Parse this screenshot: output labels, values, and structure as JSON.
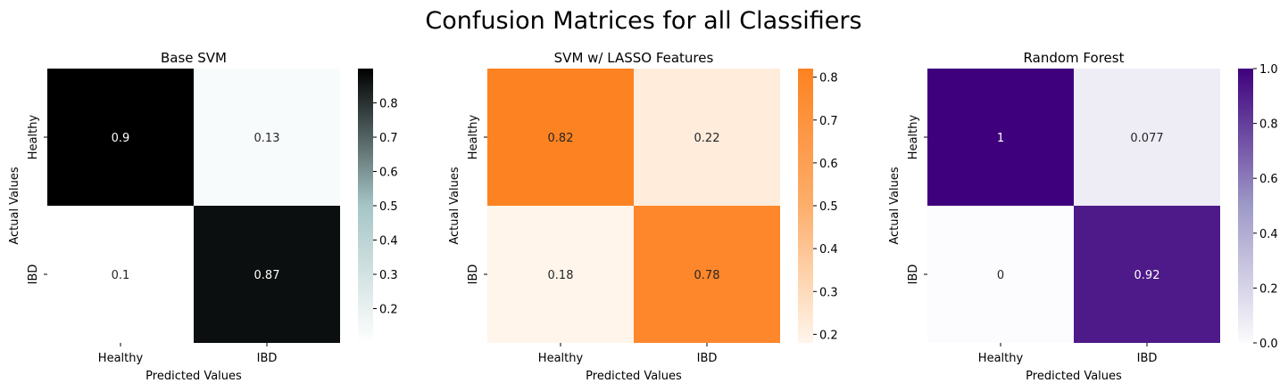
{
  "figure": {
    "title": "Confusion Matrices for all Classifiers"
  },
  "chart_data": [
    {
      "type": "heatmap",
      "title": "Base SVM",
      "xlabel": "Predicted Values",
      "ylabel": "Actual Values",
      "x_categories": [
        "Healthy",
        "IBD"
      ],
      "y_categories": [
        "Healthy",
        "IBD"
      ],
      "values": [
        [
          0.9,
          0.13
        ],
        [
          0.1,
          0.87
        ]
      ],
      "cell_labels": [
        [
          "0.9",
          "0.13"
        ],
        [
          "0.1",
          "0.87"
        ]
      ],
      "colormap": "bone_r",
      "colorbar": {
        "range": [
          0.1,
          0.9
        ],
        "ticks": [
          "0.2",
          "0.3",
          "0.4",
          "0.5",
          "0.6",
          "0.7",
          "0.8"
        ]
      },
      "colors": {
        "low": "#ffffff",
        "mid": "#a6c5c5",
        "high": "#000000"
      }
    },
    {
      "type": "heatmap",
      "title": "SVM w/ LASSO Features",
      "xlabel": "Predicted Values",
      "ylabel": "Actual Values",
      "x_categories": [
        "Healthy",
        "IBD"
      ],
      "y_categories": [
        "Healthy",
        "IBD"
      ],
      "values": [
        [
          0.82,
          0.22
        ],
        [
          0.18,
          0.78
        ]
      ],
      "cell_labels": [
        [
          "0.82",
          "0.22"
        ],
        [
          "0.18",
          "0.78"
        ]
      ],
      "colormap": "Oranges",
      "colorbar": {
        "range": [
          0.18,
          0.82
        ],
        "ticks": [
          "0.2",
          "0.3",
          "0.4",
          "0.5",
          "0.6",
          "0.7",
          "0.8"
        ]
      },
      "colors": {
        "low": "#fff5eb",
        "mid": "#fdae6b",
        "high": "#fd8221"
      }
    },
    {
      "type": "heatmap",
      "title": "Random Forest",
      "xlabel": "Predicted Values",
      "ylabel": "Actual Values",
      "x_categories": [
        "Healthy",
        "IBD"
      ],
      "y_categories": [
        "Healthy",
        "IBD"
      ],
      "values": [
        [
          1,
          0.077
        ],
        [
          0,
          0.92
        ]
      ],
      "cell_labels": [
        [
          "1",
          "0.077"
        ],
        [
          "0",
          "0.92"
        ]
      ],
      "colormap": "Purples",
      "colorbar": {
        "range": [
          0,
          1
        ],
        "ticks": [
          "0.0",
          "0.2",
          "0.4",
          "0.6",
          "0.8",
          "1.0"
        ]
      },
      "colors": {
        "low": "#fcfbfd",
        "mid": "#9e9ac8",
        "high": "#3f007d"
      }
    }
  ]
}
